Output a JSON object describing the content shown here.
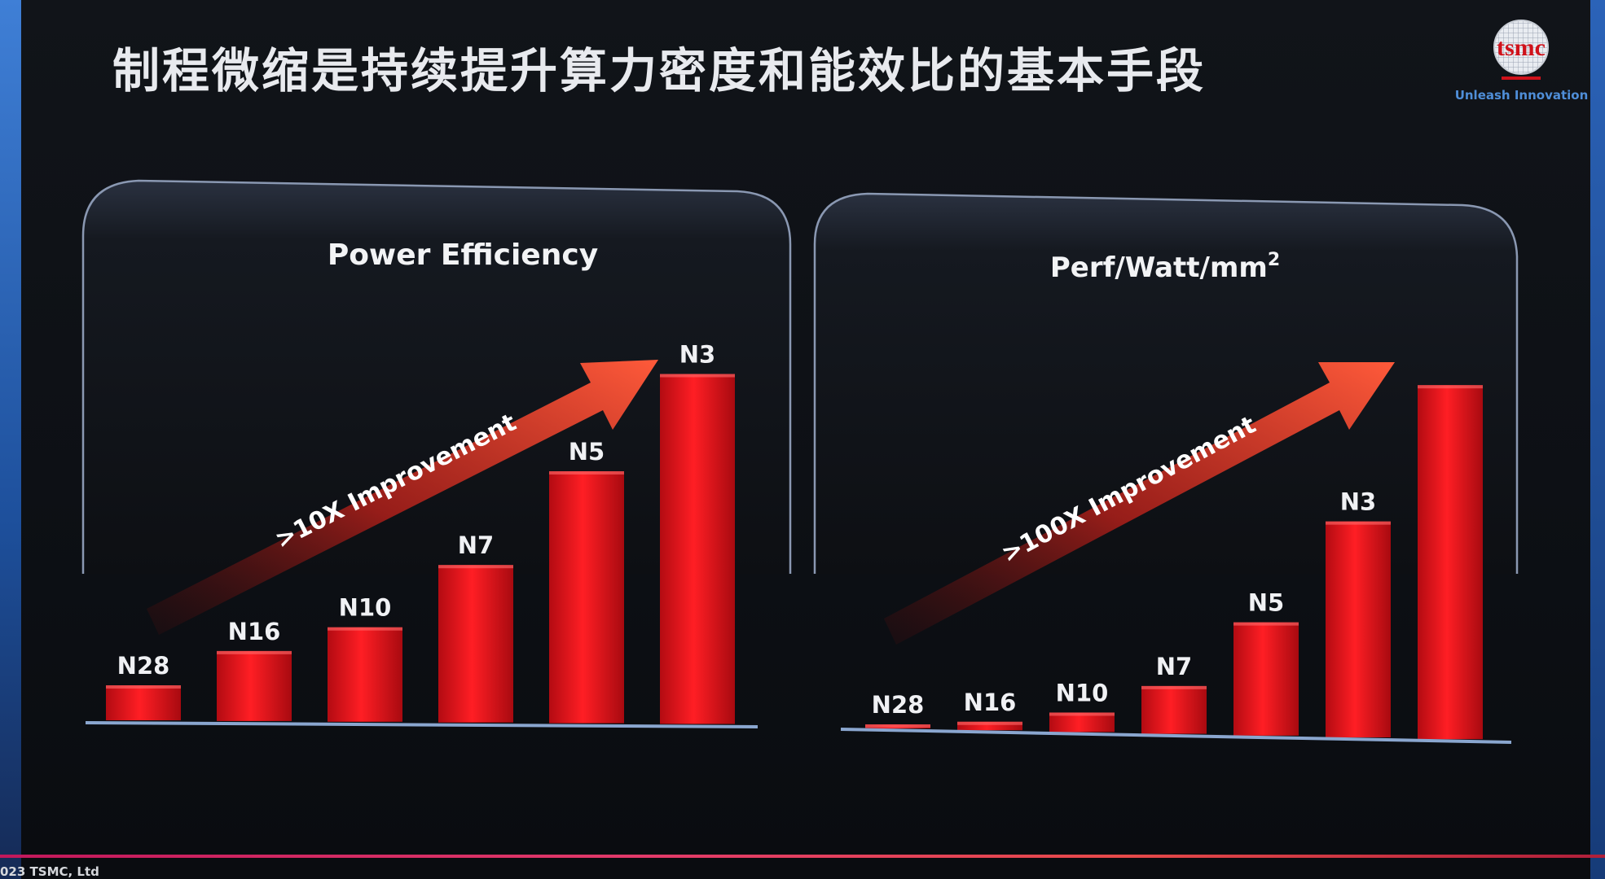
{
  "slide": {
    "title": "制程微缩是持续提升算力密度和能效比的基本手段",
    "logo_text": "tsmc",
    "logo_tagline": "Unleash Innovation",
    "footer": "023 TSMC, Ltd"
  },
  "colors": {
    "bar_red": "#e0101c",
    "bar_red_dark": "#9b0a10",
    "arrow_orange": "#ff5a3a",
    "axis_blue": "#8aa6cf",
    "panel_border": "#8a98b2"
  },
  "chart_data": [
    {
      "type": "bar",
      "title": "Power Efficiency",
      "categories": [
        "N28",
        "N16",
        "N10",
        "N7",
        "N5",
        "N3"
      ],
      "values": [
        1,
        2,
        2.7,
        4.5,
        7.2,
        10
      ],
      "ylim": [
        0,
        10
      ],
      "annotation": ">10X Improvement",
      "grid": false,
      "legend": "none"
    },
    {
      "type": "bar",
      "title": "Perf/Watt/mm",
      "title_sup": "2",
      "categories": [
        "N28",
        "N16",
        "N10",
        "N7",
        "N5",
        "N3",
        ""
      ],
      "values": [
        0.7,
        2.4,
        5.5,
        13.5,
        32,
        61,
        100
      ],
      "ylim": [
        0,
        100
      ],
      "annotation": ">100X Improvement",
      "grid": false,
      "legend": "none"
    }
  ]
}
